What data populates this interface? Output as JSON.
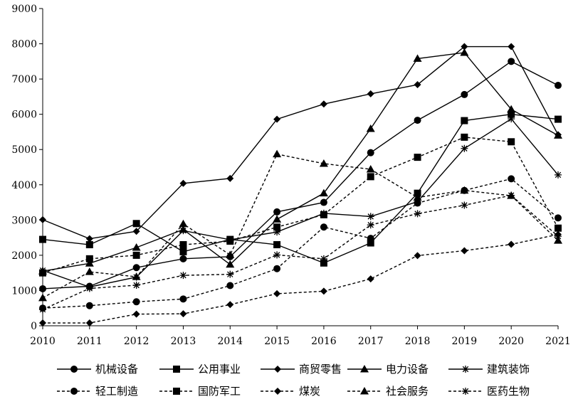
{
  "chart_data": {
    "type": "line",
    "x": [
      "2010",
      "2011",
      "2012",
      "2013",
      "2014",
      "2015",
      "2016",
      "2017",
      "2018",
      "2019",
      "2020",
      "2021"
    ],
    "ylim": [
      0,
      9000
    ],
    "yticks": [
      "0",
      "1000",
      "2000",
      "3000",
      "4000",
      "5000",
      "6000",
      "7000",
      "8000",
      "9000"
    ],
    "grid": false,
    "legend": "bottom",
    "series": [
      {
        "name": "机械设备",
        "style": "solid",
        "marker": "circle",
        "values": [
          1050,
          1120,
          1650,
          1900,
          1960,
          3230,
          3500,
          4910,
          5830,
          6560,
          7500,
          6820
        ]
      },
      {
        "name": "公用事业",
        "style": "solid",
        "marker": "square",
        "values": [
          2450,
          2300,
          2900,
          2100,
          2450,
          2300,
          1780,
          2350,
          3760,
          5820,
          6000,
          5860
        ]
      },
      {
        "name": "商贸零售",
        "style": "solid",
        "marker": "diamond",
        "values": [
          3010,
          2470,
          2680,
          4040,
          4180,
          5860,
          6290,
          6580,
          6840,
          7920,
          7920,
          5420
        ]
      },
      {
        "name": "电力设备",
        "style": "solid",
        "marker": "triangle",
        "values": [
          1550,
          1770,
          2220,
          2730,
          1740,
          3020,
          3760,
          5590,
          7580,
          7750,
          6140,
          5400
        ]
      },
      {
        "name": "建筑装饰",
        "style": "solid",
        "marker": "star",
        "values": [
          1570,
          1100,
          1380,
          2700,
          2440,
          2660,
          3190,
          3100,
          3520,
          5030,
          5870,
          4280
        ]
      },
      {
        "name": "轻工制造",
        "style": "dashed",
        "marker": "circle",
        "values": [
          500,
          570,
          680,
          760,
          1140,
          1620,
          2800,
          2480,
          3480,
          3840,
          4170,
          3060
        ]
      },
      {
        "name": "国防军工",
        "style": "dashed",
        "marker": "square",
        "values": [
          1500,
          1900,
          2000,
          2300,
          2400,
          2800,
          3150,
          4230,
          4780,
          5350,
          5220,
          2770
        ]
      },
      {
        "name": "煤炭",
        "style": "dashed",
        "marker": "diamond",
        "values": [
          80,
          80,
          330,
          340,
          600,
          910,
          980,
          1330,
          1990,
          2130,
          2310,
          2590
        ]
      },
      {
        "name": "社会服务",
        "style": "dashed",
        "marker": "triangle",
        "values": [
          790,
          1530,
          1390,
          2890,
          2010,
          4870,
          4600,
          4440,
          3640,
          3840,
          3690,
          2420
        ]
      },
      {
        "name": "医药生物",
        "style": "dashed",
        "marker": "star",
        "values": [
          460,
          1060,
          1150,
          1430,
          1460,
          2010,
          1900,
          2860,
          3180,
          3420,
          3700,
          2540
        ]
      }
    ]
  }
}
